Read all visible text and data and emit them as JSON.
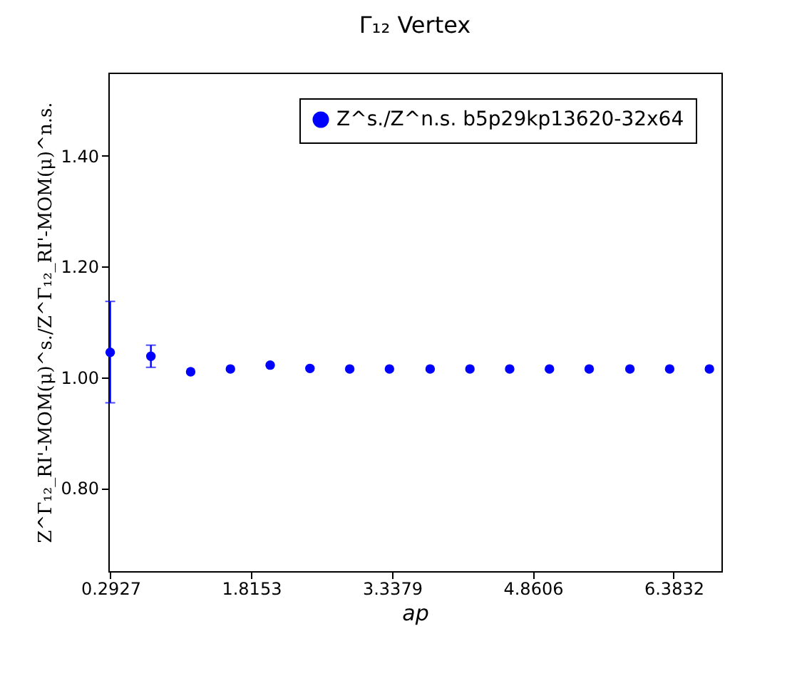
{
  "chart_data": {
    "type": "scatter",
    "title": "Γ₁₂ Vertex",
    "xlabel": "ap",
    "ylabel": "Z^Γ₁₂_RI'-MOM(μ)^s./Z^Γ₁₂_RI'-MOM(μ)^n.s.",
    "x": [
      0.29,
      0.73,
      1.16,
      1.59,
      2.02,
      2.45,
      2.88,
      3.31,
      3.75,
      4.18,
      4.61,
      5.04,
      5.47,
      5.91,
      6.34,
      6.77
    ],
    "series": [
      {
        "name": "Z^s./Z^n.s. b5p29kp13620-32x64",
        "color": "#0000ff",
        "values": [
          1.045,
          1.038,
          1.01,
          1.015,
          1.022,
          1.016,
          1.015,
          1.015,
          1.015,
          1.015,
          1.015,
          1.015,
          1.015,
          1.015,
          1.015,
          1.015
        ],
        "errors": [
          [
            0.954,
            1.137
          ],
          [
            1.018,
            1.058
          ],
          null,
          null,
          null,
          null,
          null,
          null,
          null,
          null,
          null,
          null,
          null,
          null,
          null,
          null
        ]
      }
    ],
    "xlim": [
      0.27,
      6.9
    ],
    "ylim": [
      0.65,
      1.55
    ],
    "xticks": [
      0.2927,
      1.8153,
      3.3379,
      4.8606,
      6.3832
    ],
    "yticks": [
      {
        "value": 0.8,
        "label": "0.80"
      },
      {
        "value": 1.0,
        "label": "1.00"
      },
      {
        "value": 1.2,
        "label": "1.20"
      },
      {
        "value": 1.4,
        "label": "1.40"
      }
    ],
    "legend": "top right",
    "grid": false,
    "marker": "circle"
  }
}
